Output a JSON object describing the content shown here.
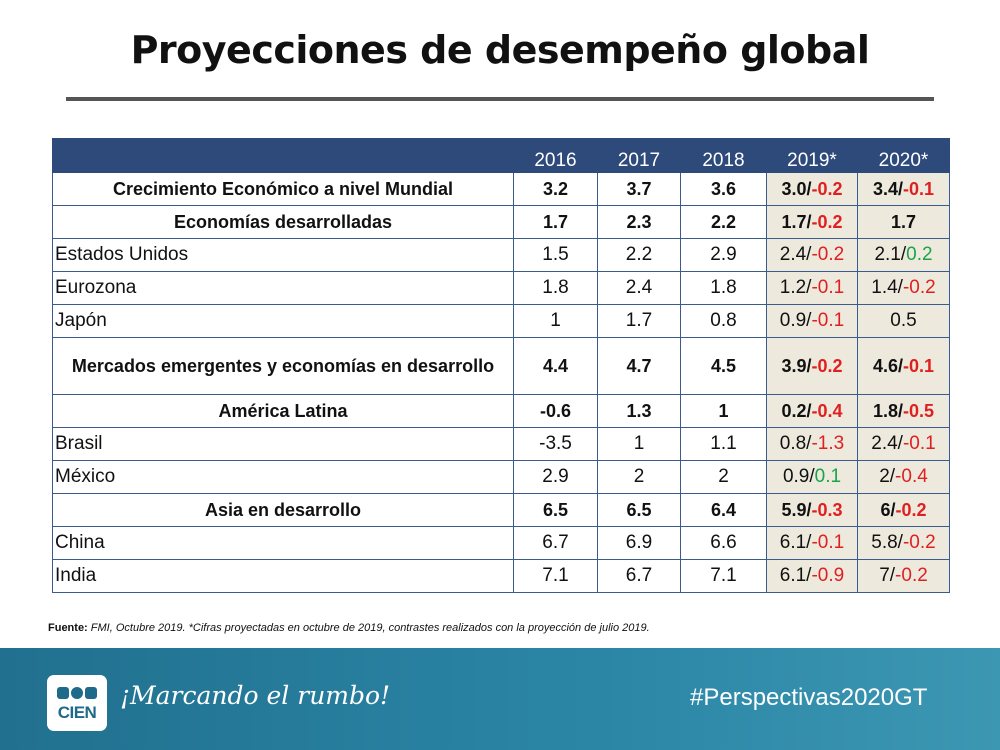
{
  "header": {
    "title": "Proyecciones de desempeño global"
  },
  "table": {
    "columns": [
      "2016",
      "2017",
      "2018",
      "2019*",
      "2020*"
    ],
    "rows": [
      {
        "label": "Crecimiento Económico a nivel  Mundial",
        "bold": true,
        "values": [
          "3.2",
          "3.7",
          "3.6"
        ],
        "projections": [
          {
            "base": "3.0/",
            "change": "-0.2"
          },
          {
            "base": "3.4/",
            "change": "-0.1"
          }
        ]
      },
      {
        "label": "Economías desarrolladas",
        "bold": true,
        "values": [
          "1.7",
          "2.3",
          "2.2"
        ],
        "projections": [
          {
            "base": "1.7/",
            "change": "-0.2"
          },
          {
            "base": "1.7"
          }
        ]
      },
      {
        "label": "Estados Unidos",
        "bold": false,
        "values": [
          "1.5",
          "2.2",
          "2.9"
        ],
        "projections": [
          {
            "base": "2.4/",
            "change": "-0.2"
          },
          {
            "base": "2.1/",
            "change": "0.2"
          }
        ]
      },
      {
        "label": "Eurozona",
        "bold": false,
        "values": [
          "1.8",
          "2.4",
          "1.8"
        ],
        "projections": [
          {
            "base": "1.2/",
            "change": "-0.1"
          },
          {
            "base": "1.4/",
            "change": "-0.2"
          }
        ]
      },
      {
        "label": "Japón",
        "bold": false,
        "values": [
          "1",
          "1.7",
          "0.8"
        ],
        "projections": [
          {
            "base": "0.9/",
            "change": "-0.1"
          },
          {
            "base": "0.5"
          }
        ]
      },
      {
        "label": "Mercados emergentes y economías en desarrollo",
        "bold": true,
        "values": [
          "4.4",
          "4.7",
          "4.5"
        ],
        "projections": [
          {
            "base": "3.9/",
            "change": "-0.2"
          },
          {
            "base": "4.6/",
            "change": "-0.1"
          }
        ]
      },
      {
        "label": "América Latina",
        "bold": true,
        "values": [
          "-0.6",
          "1.3",
          "1"
        ],
        "projections": [
          {
            "base": "0.2/",
            "change": "-0.4"
          },
          {
            "base": "1.8/",
            "change": "-0.5"
          }
        ]
      },
      {
        "label": "Brasil",
        "bold": false,
        "values": [
          "-3.5",
          "1",
          "1.1"
        ],
        "projections": [
          {
            "base": "0.8/",
            "change": "-1.3"
          },
          {
            "base": "2.4/",
            "change": "-0.1"
          }
        ]
      },
      {
        "label": "México",
        "bold": false,
        "values": [
          "2.9",
          "2",
          "2"
        ],
        "projections": [
          {
            "base": "0.9/",
            "change": "0.1"
          },
          {
            "base": "2/",
            "change": "-0.4"
          }
        ]
      },
      {
        "label": "Asia en desarrollo",
        "bold": true,
        "values": [
          "6.5",
          "6.5",
          "6.4"
        ],
        "projections": [
          {
            "base": "5.9/",
            "change": "-0.3"
          },
          {
            "base": "6/",
            "change": "-0.2"
          }
        ]
      },
      {
        "label": "China",
        "bold": false,
        "values": [
          "6.7",
          "6.9",
          "6.6"
        ],
        "projections": [
          {
            "base": "6.1/",
            "change": "-0.1"
          },
          {
            "base": "5.8/",
            "change": "-0.2"
          }
        ]
      },
      {
        "label": "India",
        "bold": false,
        "values": [
          "7.1",
          "6.7",
          "7.1"
        ],
        "projections": [
          {
            "base": "6.1/",
            "change": "-0.9"
          },
          {
            "base": "7/",
            "change": "-0.2"
          }
        ]
      }
    ]
  },
  "source": {
    "label": "Fuente:",
    "text": "FMI,  Octubre 2019. *Cifras proyectadas en octubre de 2019, contrastes realizados con la proyección de julio 2019."
  },
  "footer": {
    "logo": "CIEN",
    "slogan": "¡Marcando el rumbo!",
    "hashtag": "#Perspectivas2020GT"
  }
}
